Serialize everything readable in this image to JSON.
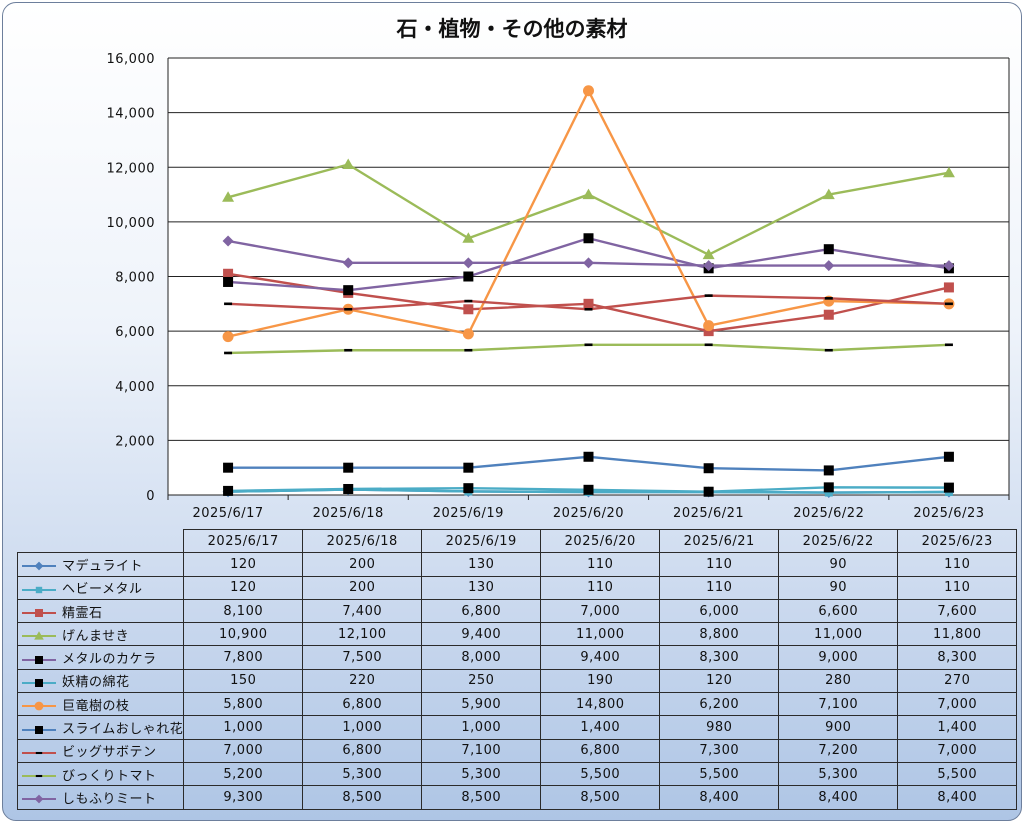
{
  "chart_data": {
    "type": "line",
    "title": "石・植物・その他の素材",
    "categories": [
      "2025/6/17",
      "2025/6/18",
      "2025/6/19",
      "2025/6/20",
      "2025/6/21",
      "2025/6/22",
      "2025/6/23"
    ],
    "ylim": [
      0,
      16000
    ],
    "yticks": [
      0,
      2000,
      4000,
      6000,
      8000,
      10000,
      12000,
      14000,
      16000
    ],
    "ytick_labels": [
      "0",
      "2,000",
      "4,000",
      "6,000",
      "8,000",
      "10,000",
      "12,000",
      "14,000",
      "16,000"
    ],
    "grid": true,
    "legend": "data-table",
    "series": [
      {
        "name": "マデュライト",
        "color": "#4f81bd",
        "marker": "diamond",
        "values": [
          120,
          200,
          130,
          110,
          110,
          90,
          110
        ],
        "labels": [
          "120",
          "200",
          "130",
          "110",
          "110",
          "90",
          "110"
        ]
      },
      {
        "name": "ヘビーメタル",
        "color": "#4bacc6",
        "marker": "square-small",
        "values": [
          120,
          200,
          130,
          110,
          110,
          90,
          110
        ],
        "labels": [
          "120",
          "200",
          "130",
          "110",
          "110",
          "90",
          "110"
        ]
      },
      {
        "name": "精霊石",
        "color": "#c0504d",
        "marker": "square",
        "values": [
          8100,
          7400,
          6800,
          7000,
          6000,
          6600,
          7600
        ],
        "labels": [
          "8,100",
          "7,400",
          "6,800",
          "7,000",
          "6,000",
          "6,600",
          "7,600"
        ]
      },
      {
        "name": "げんませき",
        "color": "#9bbb59",
        "marker": "triangle",
        "values": [
          10900,
          12100,
          9400,
          11000,
          8800,
          11000,
          11800
        ],
        "labels": [
          "10,900",
          "12,100",
          "9,400",
          "11,000",
          "8,800",
          "11,000",
          "11,800"
        ]
      },
      {
        "name": "メタルのカケラ",
        "color": "#8064a2",
        "marker": "square-black",
        "values": [
          7800,
          7500,
          8000,
          9400,
          8300,
          9000,
          8300
        ],
        "labels": [
          "7,800",
          "7,500",
          "8,000",
          "9,400",
          "8,300",
          "9,000",
          "8,300"
        ]
      },
      {
        "name": "妖精の綿花",
        "color": "#4bacc6",
        "marker": "square-black",
        "values": [
          150,
          220,
          250,
          190,
          120,
          280,
          270
        ],
        "labels": [
          "150",
          "220",
          "250",
          "190",
          "120",
          "280",
          "270"
        ]
      },
      {
        "name": "巨竜樹の枝",
        "color": "#f79646",
        "marker": "circle",
        "values": [
          5800,
          6800,
          5900,
          14800,
          6200,
          7100,
          7000
        ],
        "labels": [
          "5,800",
          "6,800",
          "5,900",
          "14,800",
          "6,200",
          "7,100",
          "7,000"
        ]
      },
      {
        "name": "スライムおしゃれ花",
        "color": "#4f81bd",
        "marker": "square-black",
        "values": [
          1000,
          1000,
          1000,
          1400,
          980,
          900,
          1400
        ],
        "labels": [
          "1,000",
          "1,000",
          "1,000",
          "1,400",
          "980",
          "900",
          "1,400"
        ]
      },
      {
        "name": "ビッグサボテン",
        "color": "#c0504d",
        "marker": "dash",
        "values": [
          7000,
          6800,
          7100,
          6800,
          7300,
          7200,
          7000
        ],
        "labels": [
          "7,000",
          "6,800",
          "7,100",
          "6,800",
          "7,300",
          "7,200",
          "7,000"
        ]
      },
      {
        "name": "びっくりトマト",
        "color": "#9bbb59",
        "marker": "dash",
        "values": [
          5200,
          5300,
          5300,
          5500,
          5500,
          5300,
          5500
        ],
        "labels": [
          "5,200",
          "5,300",
          "5,300",
          "5,500",
          "5,500",
          "5,300",
          "5,500"
        ]
      },
      {
        "name": "しもふりミート",
        "color": "#8064a2",
        "marker": "diamond",
        "values": [
          9300,
          8500,
          8500,
          8500,
          8400,
          8400,
          8400
        ],
        "labels": [
          "9,300",
          "8,500",
          "8,500",
          "8,500",
          "8,400",
          "8,400",
          "8,400"
        ]
      }
    ]
  }
}
